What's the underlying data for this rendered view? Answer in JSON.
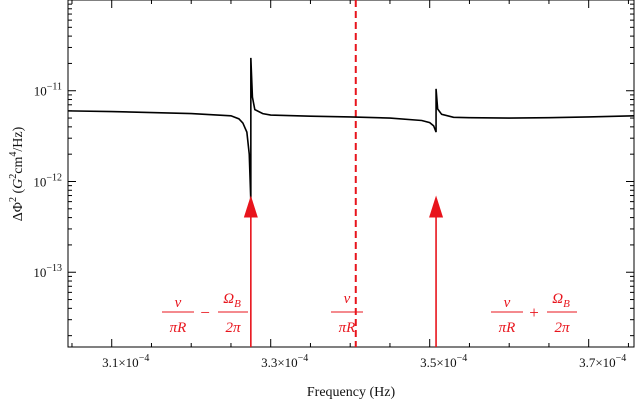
{
  "chart_data": {
    "type": "line",
    "xlabel": "Frequency (Hz)",
    "ylabel_parts": {
      "base": "ΔΦ",
      "sup1": "2",
      "open": " (",
      "G": "G",
      "sup2": "2",
      "cm": "cm",
      "sup3": "4",
      "tail": "/Hz)"
    },
    "x_scale": "linear",
    "y_scale": "log",
    "xlim": [
      0.0003045,
      0.0003757
    ],
    "ylim": [
      1.5e-14,
      1e-10
    ],
    "x_ticks": [
      {
        "value": 0.00031,
        "mant": "3.1×10",
        "exp": "−4"
      },
      {
        "value": 0.00033,
        "mant": "3.3×10",
        "exp": "−4"
      },
      {
        "value": 0.00035,
        "mant": "3.5×10",
        "exp": "−4"
      },
      {
        "value": 0.00037,
        "mant": "3.7×10",
        "exp": "−4"
      }
    ],
    "y_ticks": [
      {
        "value": 1e-11,
        "mant": "10",
        "exp": "−11"
      },
      {
        "value": 1e-12,
        "mant": "10",
        "exp": "−12"
      },
      {
        "value": 1e-13,
        "mant": "10",
        "exp": "−13"
      }
    ],
    "grid": false,
    "series": [
      {
        "color": "#000000",
        "x": [
          0.0003045,
          0.00031,
          0.00032,
          0.000325,
          0.000326,
          0.0003265,
          0.000327,
          0.0003273,
          0.0003275,
          0.0003275,
          0.0003277,
          0.000328,
          0.000329,
          0.00033,
          0.000335,
          0.00034,
          0.000345,
          0.000349,
          0.00035,
          0.0003505,
          0.0003508,
          0.0003508,
          0.000351,
          0.0003515,
          0.000353,
          0.000355,
          0.00036,
          0.000365,
          0.00037,
          0.0003757
        ],
        "y": [
          6e-12,
          5.9e-12,
          5.6e-12,
          5.3e-12,
          4.9e-12,
          4.4e-12,
          3.5e-12,
          2e-12,
          6e-13,
          2.3e-11,
          8.5e-12,
          6.2e-12,
          5.6e-12,
          5.4e-12,
          5.25e-12,
          5.15e-12,
          5e-12,
          4.7e-12,
          4.45e-12,
          4.1e-12,
          3.5e-12,
          1.05e-11,
          6.3e-12,
          5.5e-12,
          5.1e-12,
          5.05e-12,
          5e-12,
          5.05e-12,
          5.15e-12,
          5.3e-12
        ]
      }
    ],
    "reference_line": {
      "x": 0.0003407,
      "style": "dashed",
      "color": "#e8141c"
    },
    "arrows": [
      {
        "x": 0.0003275,
        "y_from": 1.5e-14,
        "y_to": 7e-13,
        "color": "#e8141c"
      },
      {
        "x": 0.0003508,
        "y_from": 1.5e-14,
        "y_to": 7e-13,
        "color": "#e8141c"
      }
    ],
    "annotations": [
      {
        "name": "lower-sideband",
        "num1": "v",
        "den1": "πR",
        "op": "−",
        "num2": "Ω",
        "num2_sub": "B",
        "den2": "2π"
      },
      {
        "name": "center",
        "num1": "v",
        "den1": "πR"
      },
      {
        "name": "upper-sideband",
        "num1": "v",
        "den1": "πR",
        "op": "+",
        "num2": "Ω",
        "num2_sub": "B",
        "den2": "2π"
      }
    ]
  }
}
